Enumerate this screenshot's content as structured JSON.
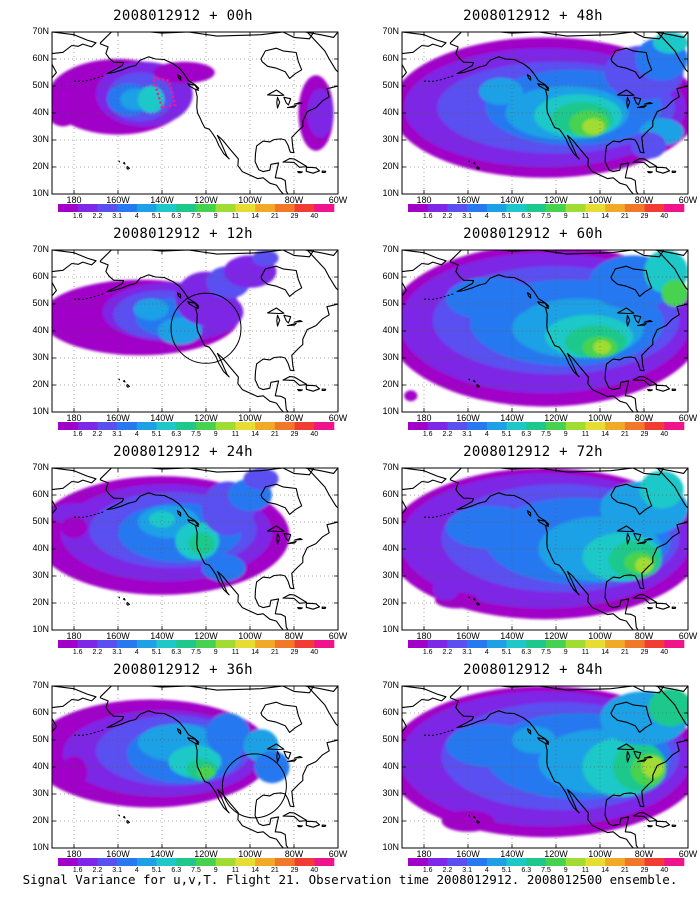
{
  "panels": [
    {
      "title": "2008012912 + 00h",
      "lead_hours": 0
    },
    {
      "title": "2008012912 + 48h",
      "lead_hours": 48
    },
    {
      "title": "2008012912 + 12h",
      "lead_hours": 12
    },
    {
      "title": "2008012912 + 60h",
      "lead_hours": 60
    },
    {
      "title": "2008012912 + 24h",
      "lead_hours": 24
    },
    {
      "title": "2008012912 + 72h",
      "lead_hours": 72
    },
    {
      "title": "2008012912 + 36h",
      "lead_hours": 36
    },
    {
      "title": "2008012912 + 84h",
      "lead_hours": 84
    }
  ],
  "lat_labels": [
    "70N",
    "60N",
    "50N",
    "40N",
    "30N",
    "20N",
    "10N"
  ],
  "lon_labels": [
    "180",
    "160W",
    "140W",
    "120W",
    "100W",
    "80W",
    "60W"
  ],
  "colorbar": {
    "labels": [
      "1.6",
      "2.2",
      "3.1",
      "4",
      "5.1",
      "6.3",
      "7.5",
      "9",
      "11",
      "14",
      "21",
      "29",
      "40"
    ],
    "colors": [
      "#ffffff",
      "#a000c8",
      "#7d28e6",
      "#5a50f0",
      "#2878f0",
      "#1ea0e6",
      "#1ec8c8",
      "#1ec88c",
      "#46d250",
      "#a0dc32",
      "#e6dc32",
      "#f0aa28",
      "#f07828",
      "#f03c32",
      "#f0148c"
    ]
  },
  "footer": "Signal Variance for u,v,T. Flight 21. Observation time 2008012912. 2008012500 ensemble."
}
